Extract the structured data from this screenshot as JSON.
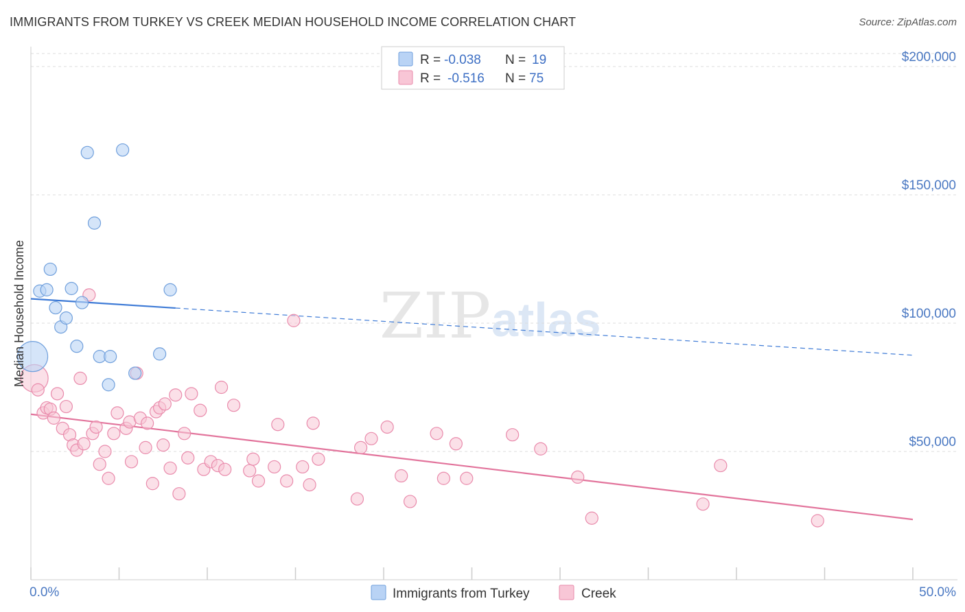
{
  "title": "IMMIGRANTS FROM TURKEY VS CREEK MEDIAN HOUSEHOLD INCOME CORRELATION CHART",
  "source": "Source: ZipAtlas.com",
  "watermark": {
    "part1": "ZIP",
    "part2": "atlas"
  },
  "colors": {
    "blue_fill": "#b9d3f5",
    "blue_stroke": "#6f9fdc",
    "blue_line": "#3d7ad6",
    "pink_fill": "#f8c6d6",
    "pink_stroke": "#e98aab",
    "pink_line": "#e2739b",
    "grid": "#dddddd",
    "axis": "#cccccc"
  },
  "legend": {
    "rows": [
      {
        "r_label": "R =",
        "r_value": "-0.038",
        "n_label": "N =",
        "n_value": "19"
      },
      {
        "r_label": "R =",
        "r_value": "-0.516",
        "n_label": "N =",
        "n_value": "75"
      }
    ]
  },
  "bottom_legend": [
    "Immigrants from Turkey",
    "Creek"
  ],
  "chart_data": {
    "type": "scatter",
    "title": "IMMIGRANTS FROM TURKEY VS CREEK MEDIAN HOUSEHOLD INCOME CORRELATION CHART",
    "xlabel": "",
    "ylabel": "Median Household Income",
    "xlim": [
      0,
      50
    ],
    "ylim": [
      0,
      210000
    ],
    "x_tick_labels": [
      "0.0%",
      "50.0%"
    ],
    "y_ticks": [
      50000,
      100000,
      150000,
      200000
    ],
    "y_tick_labels": [
      "$50,000",
      "$100,000",
      "$150,000",
      "$200,000"
    ],
    "series": [
      {
        "name": "Immigrants from Turkey",
        "R": -0.038,
        "N": 19,
        "trend": {
          "x0": 0,
          "y0": 109500,
          "x1": 50,
          "y1": 87500,
          "solid_until": 8.2
        },
        "points": [
          [
            0.1,
            87000,
            1
          ],
          [
            0.5,
            112500,
            0
          ],
          [
            0.9,
            113000,
            0
          ],
          [
            1.1,
            121000,
            0
          ],
          [
            1.4,
            106000,
            0
          ],
          [
            1.7,
            98500,
            0
          ],
          [
            2.0,
            102000,
            0
          ],
          [
            2.3,
            113500,
            0
          ],
          [
            2.6,
            91000,
            0
          ],
          [
            2.9,
            108000,
            0
          ],
          [
            3.2,
            166500,
            0
          ],
          [
            3.6,
            139000,
            0
          ],
          [
            3.9,
            87000,
            0
          ],
          [
            4.5,
            87000,
            0
          ],
          [
            4.4,
            76000,
            0
          ],
          [
            5.2,
            167500,
            0
          ],
          [
            5.9,
            80500,
            0
          ],
          [
            7.3,
            88000,
            0
          ],
          [
            7.9,
            113000,
            0
          ]
        ]
      },
      {
        "name": "Creek",
        "R": -0.516,
        "N": 75,
        "trend": {
          "x0": 0,
          "y0": 64500,
          "x1": 50,
          "y1": 23500
        },
        "points": [
          [
            0.2,
            78500,
            1
          ],
          [
            0.4,
            74000,
            0
          ],
          [
            0.7,
            65000,
            0
          ],
          [
            0.9,
            67000,
            0
          ],
          [
            1.1,
            66500,
            0
          ],
          [
            1.3,
            63000,
            0
          ],
          [
            1.5,
            72500,
            0
          ],
          [
            1.8,
            59000,
            0
          ],
          [
            2.0,
            67500,
            0
          ],
          [
            2.2,
            56500,
            0
          ],
          [
            2.4,
            52500,
            0
          ],
          [
            2.6,
            50500,
            0
          ],
          [
            2.8,
            78500,
            0
          ],
          [
            3.0,
            53000,
            0
          ],
          [
            3.3,
            111000,
            0
          ],
          [
            3.5,
            57000,
            0
          ],
          [
            3.7,
            59500,
            0
          ],
          [
            3.9,
            45000,
            0
          ],
          [
            4.2,
            50000,
            0
          ],
          [
            4.4,
            39500,
            0
          ],
          [
            4.7,
            57000,
            0
          ],
          [
            4.9,
            65000,
            0
          ],
          [
            5.4,
            59000,
            0
          ],
          [
            5.6,
            61500,
            0
          ],
          [
            5.7,
            46000,
            0
          ],
          [
            6.0,
            80500,
            0
          ],
          [
            6.2,
            63000,
            0
          ],
          [
            6.5,
            51500,
            0
          ],
          [
            6.6,
            61000,
            0
          ],
          [
            6.9,
            37500,
            0
          ],
          [
            7.1,
            65500,
            0
          ],
          [
            7.3,
            67000,
            0
          ],
          [
            7.5,
            52500,
            0
          ],
          [
            7.6,
            68500,
            0
          ],
          [
            7.9,
            43500,
            0
          ],
          [
            8.2,
            72000,
            0
          ],
          [
            8.4,
            33500,
            0
          ],
          [
            8.7,
            57000,
            0
          ],
          [
            8.9,
            47500,
            0
          ],
          [
            9.1,
            72500,
            0
          ],
          [
            9.6,
            66000,
            0
          ],
          [
            9.8,
            43000,
            0
          ],
          [
            10.2,
            46000,
            0
          ],
          [
            10.6,
            44500,
            0
          ],
          [
            10.8,
            75000,
            0
          ],
          [
            11.0,
            43000,
            0
          ],
          [
            11.5,
            68000,
            0
          ],
          [
            12.4,
            42500,
            0
          ],
          [
            12.6,
            47000,
            0
          ],
          [
            12.9,
            38500,
            0
          ],
          [
            13.8,
            44000,
            0
          ],
          [
            14.0,
            60500,
            0
          ],
          [
            14.5,
            38500,
            0
          ],
          [
            14.9,
            101000,
            0
          ],
          [
            15.4,
            44000,
            0
          ],
          [
            15.8,
            37000,
            0
          ],
          [
            16.0,
            61000,
            0
          ],
          [
            16.3,
            47000,
            0
          ],
          [
            18.5,
            31500,
            0
          ],
          [
            18.7,
            51500,
            0
          ],
          [
            19.3,
            55000,
            0
          ],
          [
            20.2,
            59500,
            0
          ],
          [
            21.0,
            40500,
            0
          ],
          [
            21.5,
            30500,
            0
          ],
          [
            23.0,
            57000,
            0
          ],
          [
            23.4,
            39500,
            0
          ],
          [
            24.1,
            53000,
            0
          ],
          [
            24.7,
            39500,
            0
          ],
          [
            27.3,
            56500,
            0
          ],
          [
            28.9,
            51000,
            0
          ],
          [
            31.0,
            40000,
            0
          ],
          [
            31.8,
            24000,
            0
          ],
          [
            38.1,
            29500,
            0
          ],
          [
            39.1,
            44500,
            0
          ],
          [
            44.6,
            23000,
            0
          ]
        ]
      }
    ]
  }
}
